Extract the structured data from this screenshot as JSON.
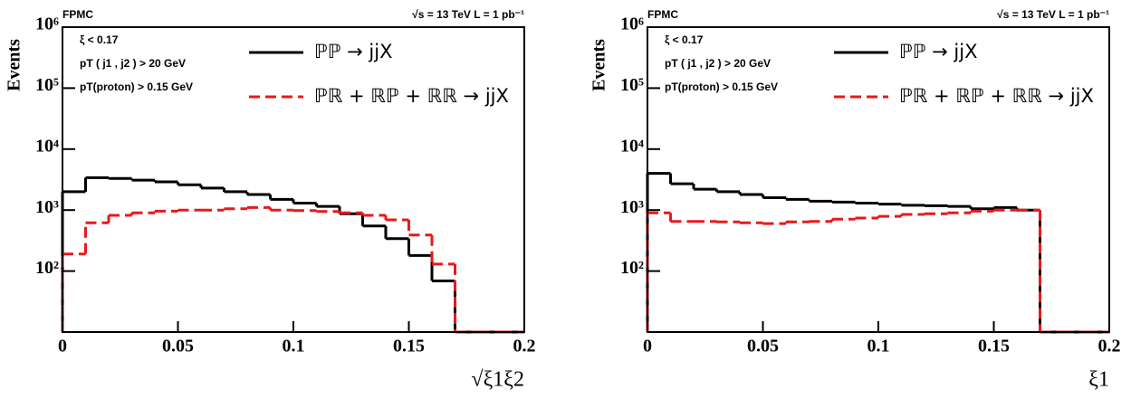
{
  "chart_data": [
    {
      "type": "histogram",
      "corner_left": "FPMC",
      "corner_right": "√s = 13 TeV  L = 1 pb⁻¹",
      "annotations": [
        "ξ < 0.17",
        "pT ( j1 , j2 ) > 20 GeV",
        "pT(proton) > 0.15 GeV"
      ],
      "xlabel": "√ξ1ξ2",
      "ylabel": "Events",
      "log_y": true,
      "bins": [
        0,
        0.01,
        0.02,
        0.03,
        0.04,
        0.05,
        0.06,
        0.07,
        0.08,
        0.09,
        0.1,
        0.11,
        0.12,
        0.13,
        0.14,
        0.15,
        0.16,
        0.17,
        0.18,
        0.19,
        0.2
      ],
      "series": [
        {
          "name": "ℙℙ → jjX",
          "color": "#000000",
          "dash": false,
          "values": [
            2000,
            3400,
            3300,
            3100,
            2900,
            2600,
            2300,
            2000,
            1800,
            1500,
            1300,
            1150,
            870,
            550,
            340,
            180,
            69,
            0,
            0,
            0
          ]
        },
        {
          "name": "ℙℝ + ℝℙ + ℝℝ → jjX",
          "color": "#e8191b",
          "dash": true,
          "values": [
            190,
            620,
            820,
            900,
            960,
            1000,
            1000,
            1050,
            1100,
            1000,
            980,
            950,
            900,
            820,
            690,
            390,
            130,
            0,
            0,
            0
          ]
        }
      ],
      "xlim": [
        0,
        0.2
      ],
      "xticks": [
        0,
        0.05,
        0.1,
        0.15,
        0.2
      ],
      "ylim": [
        10,
        1000000
      ],
      "yticks": [
        {
          "value": 100,
          "label": "10²"
        },
        {
          "value": 1000,
          "label": "10³"
        },
        {
          "value": 10000,
          "label": "10⁴"
        },
        {
          "value": 100000,
          "label": "10⁵"
        },
        {
          "value": 1000000,
          "label": "10⁶"
        }
      ]
    },
    {
      "type": "histogram",
      "corner_left": "FPMC",
      "corner_right": "√s = 13 TeV  L = 1 pb⁻¹",
      "annotations": [
        "ξ < 0.17",
        "pT ( j1 , j2 ) > 20 GeV",
        "pT(proton) > 0.15 GeV"
      ],
      "xlabel": "ξ1",
      "ylabel": "Events",
      "log_y": true,
      "bins": [
        0,
        0.01,
        0.02,
        0.03,
        0.04,
        0.05,
        0.06,
        0.07,
        0.08,
        0.09,
        0.1,
        0.11,
        0.12,
        0.13,
        0.14,
        0.15,
        0.16,
        0.17,
        0.18,
        0.19,
        0.2
      ],
      "series": [
        {
          "name": "ℙℙ → jjX",
          "color": "#000000",
          "dash": false,
          "values": [
            4000,
            2700,
            2200,
            2000,
            1800,
            1600,
            1500,
            1400,
            1350,
            1300,
            1250,
            1200,
            1180,
            1150,
            1050,
            1100,
            1000,
            0,
            0,
            0
          ]
        },
        {
          "name": "ℙℝ + ℝℙ + ℝℝ → jjX",
          "color": "#e8191b",
          "dash": true,
          "values": [
            900,
            650,
            650,
            640,
            620,
            600,
            640,
            650,
            710,
            740,
            790,
            850,
            870,
            900,
            960,
            1000,
            1000,
            0,
            0,
            0
          ]
        }
      ],
      "xlim": [
        0,
        0.2
      ],
      "xticks": [
        0,
        0.05,
        0.1,
        0.15,
        0.2
      ],
      "ylim": [
        10,
        1000000
      ],
      "yticks": [
        {
          "value": 100,
          "label": "10²"
        },
        {
          "value": 1000,
          "label": "10³"
        },
        {
          "value": 10000,
          "label": "10⁴"
        },
        {
          "value": 100000,
          "label": "10⁵"
        },
        {
          "value": 1000000,
          "label": "10⁶"
        }
      ]
    }
  ]
}
